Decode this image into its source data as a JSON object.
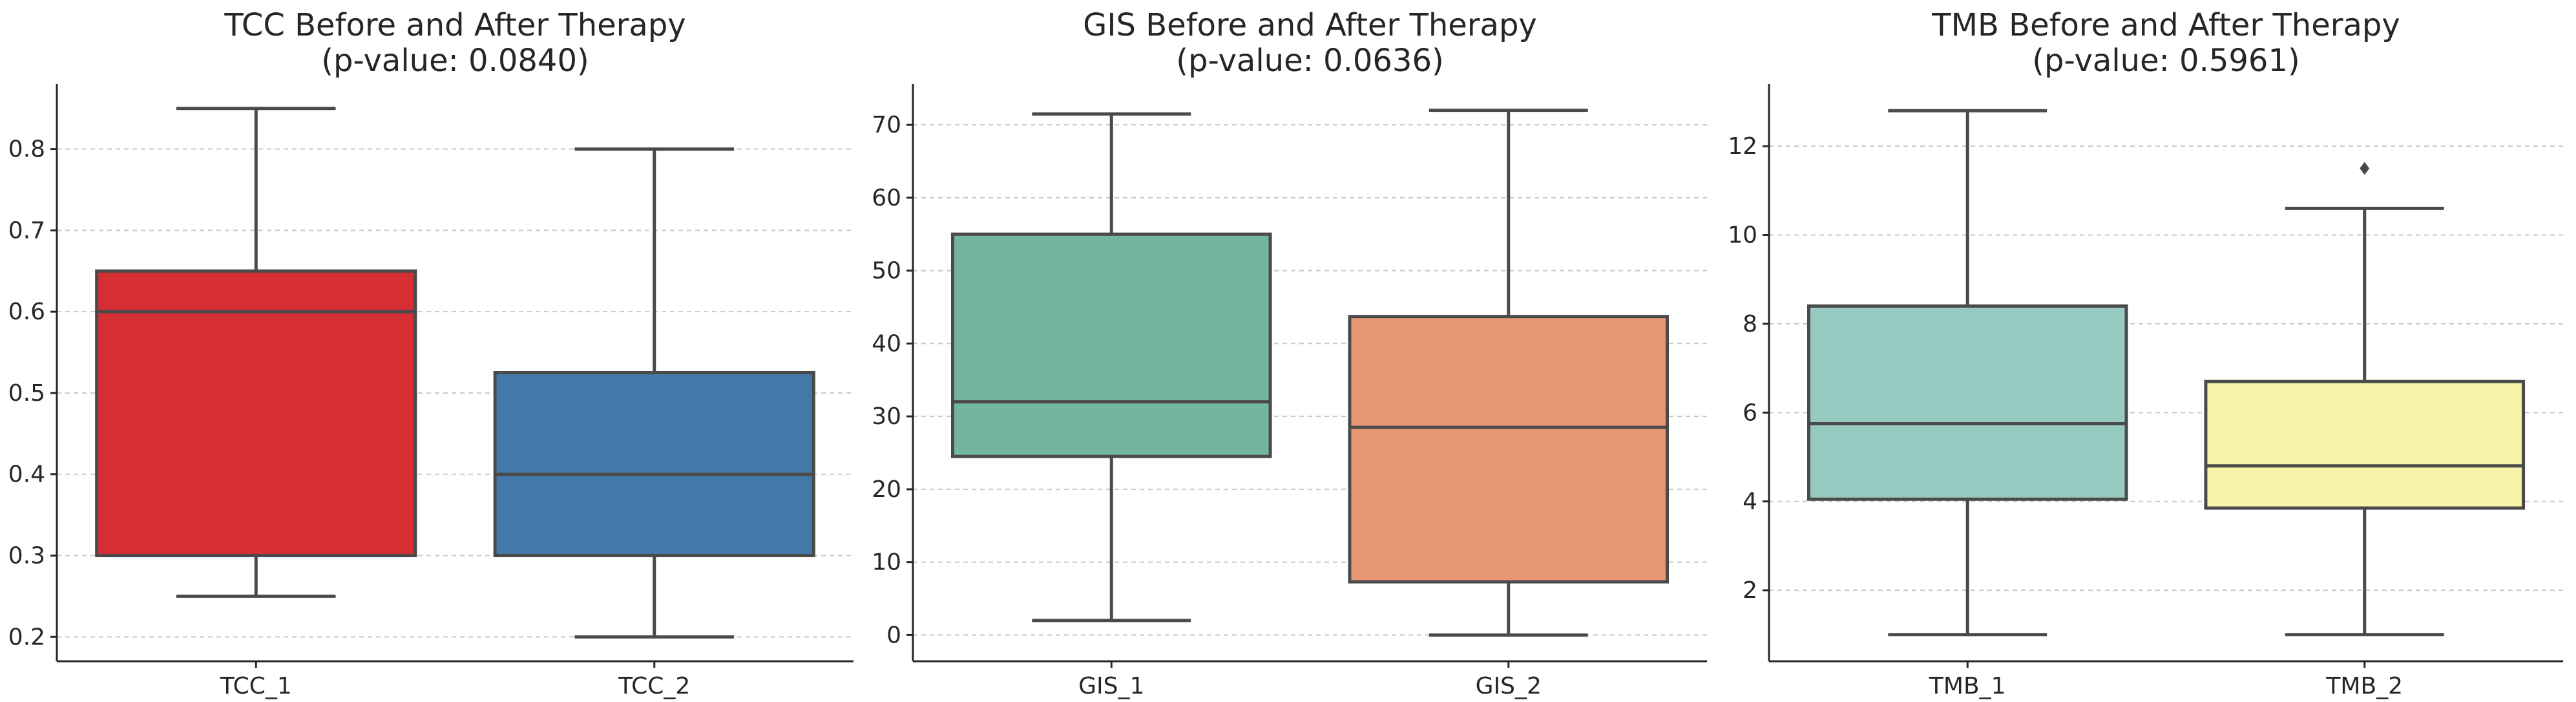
{
  "chart_data": [
    {
      "type": "box",
      "title": "TCC Before and After Therapy",
      "subtitle": "(p-value: 0.0840)",
      "xlabel": "",
      "ylabel": "",
      "ylim": [
        0.17,
        0.88
      ],
      "yticks": [
        0.2,
        0.3,
        0.4,
        0.5,
        0.6,
        0.7,
        0.8
      ],
      "tick_decimals": 1,
      "grid": true,
      "boxes": [
        {
          "label": "TCC_1",
          "color": "#d62f33",
          "whisker_low": 0.25,
          "q1": 0.3,
          "median": 0.6,
          "q3": 0.65,
          "whisker_high": 0.85,
          "outliers": []
        },
        {
          "label": "TCC_2",
          "color": "#4279a9",
          "whisker_low": 0.2,
          "q1": 0.3,
          "median": 0.4,
          "q3": 0.525,
          "whisker_high": 0.8,
          "outliers": []
        }
      ]
    },
    {
      "type": "box",
      "title": "GIS Before and After Therapy",
      "subtitle": "(p-value: 0.0636)",
      "xlabel": "",
      "ylabel": "",
      "ylim": [
        -3.6,
        75.6
      ],
      "yticks": [
        0,
        10,
        20,
        30,
        40,
        50,
        60,
        70
      ],
      "tick_decimals": 0,
      "grid": true,
      "boxes": [
        {
          "label": "GIS_1",
          "color": "#72b6a0",
          "whisker_low": 2,
          "q1": 24.5,
          "median": 32,
          "q3": 55,
          "whisker_high": 71.5,
          "outliers": []
        },
        {
          "label": "GIS_2",
          "color": "#e79674",
          "whisker_low": 0,
          "q1": 7.3,
          "median": 28.5,
          "q3": 43.7,
          "whisker_high": 72,
          "outliers": []
        }
      ]
    },
    {
      "type": "box",
      "title": "TMB Before and After Therapy",
      "subtitle": "(p-value: 0.5961)",
      "xlabel": "",
      "ylabel": "",
      "ylim": [
        0.4,
        13.4
      ],
      "yticks": [
        2,
        4,
        6,
        8,
        10,
        12
      ],
      "tick_decimals": 0,
      "grid": true,
      "boxes": [
        {
          "label": "TMB_1",
          "color": "#96c9bf",
          "whisker_low": 1,
          "q1": 4.05,
          "median": 5.75,
          "q3": 8.4,
          "whisker_high": 12.8,
          "outliers": []
        },
        {
          "label": "TMB_2",
          "color": "#f7f3a8",
          "whisker_low": 1,
          "q1": 3.85,
          "median": 4.8,
          "q3": 6.7,
          "whisker_high": 10.6,
          "outliers": [
            11.5
          ]
        }
      ]
    }
  ]
}
